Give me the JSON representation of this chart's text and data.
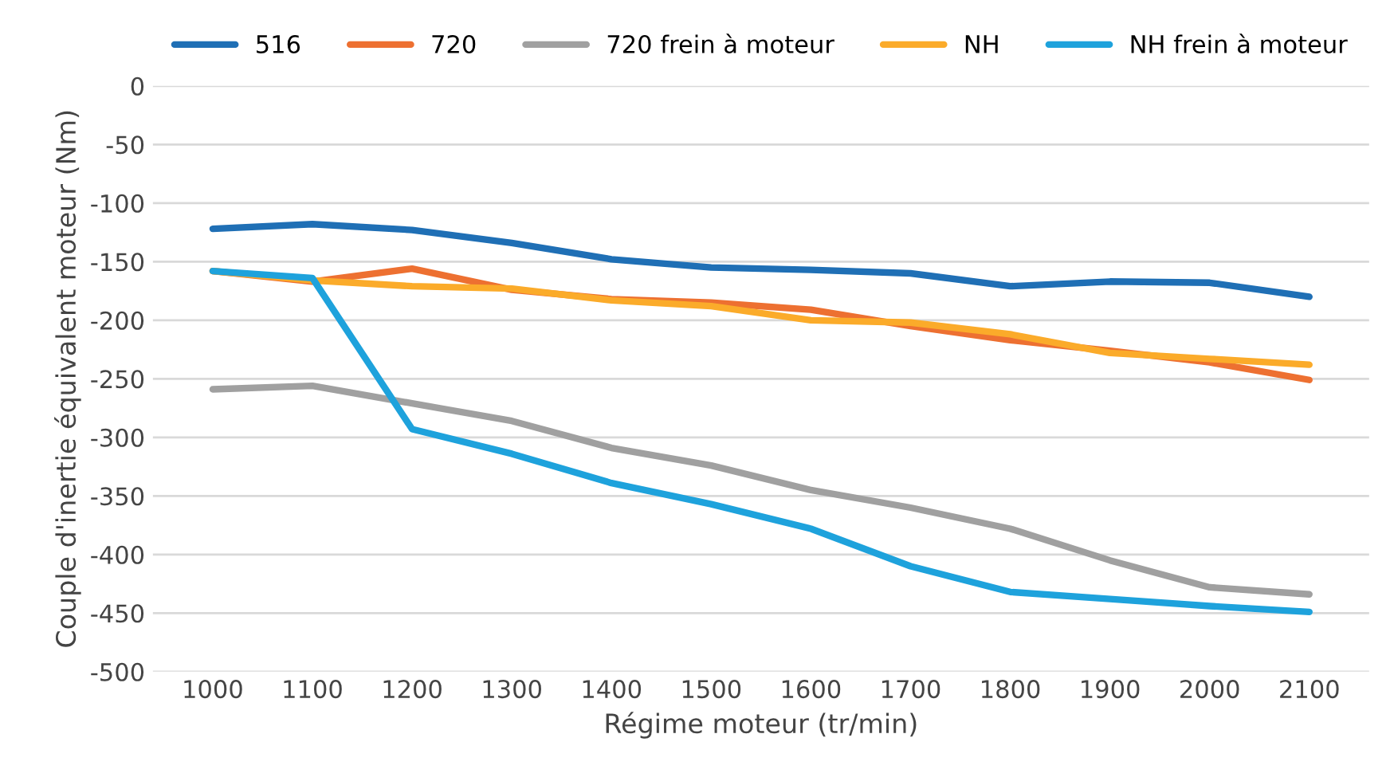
{
  "chart_data": {
    "type": "line",
    "xlabel": "Régime moteur (tr/min)",
    "ylabel": "Couple d'inertie équivalent moteur (Nm)",
    "categories": [
      "1000",
      "1100",
      "1200",
      "1300",
      "1400",
      "1500",
      "1600",
      "1700",
      "1800",
      "1900",
      "2000",
      "2100"
    ],
    "series": [
      {
        "name": "516",
        "color": "#1f6fb5",
        "values": [
          -122,
          -118,
          -123,
          -134,
          -148,
          -155,
          -157,
          -160,
          -171,
          -167,
          -168,
          -180
        ]
      },
      {
        "name": "720",
        "color": "#ed7031",
        "values": [
          -158,
          -167,
          -156,
          -174,
          -182,
          -185,
          -191,
          -205,
          -217,
          -226,
          -236,
          -251
        ]
      },
      {
        "name": "720 frein à moteur",
        "color": "#a0a0a0",
        "values": [
          -259,
          -256,
          -271,
          -286,
          -309,
          -324,
          -345,
          -360,
          -378,
          -405,
          -428,
          -434
        ]
      },
      {
        "name": "NH",
        "color": "#fbab2a",
        "values": [
          -158,
          -166,
          -171,
          -173,
          -183,
          -188,
          -200,
          -202,
          -212,
          -228,
          -233,
          -238
        ]
      },
      {
        "name": "NH frein à moteur",
        "color": "#1ea2dc",
        "values": [
          -158,
          -164,
          -293,
          -314,
          -339,
          -357,
          -378,
          -410,
          -432,
          -438,
          -444,
          -449
        ]
      }
    ],
    "ylim": [
      -500,
      0
    ],
    "yticks": [
      0,
      -50,
      -100,
      -150,
      -200,
      -250,
      -300,
      -350,
      -400,
      -450,
      -500
    ],
    "grid": "y",
    "legend": "top",
    "marker": "none",
    "line_style": "solid"
  }
}
